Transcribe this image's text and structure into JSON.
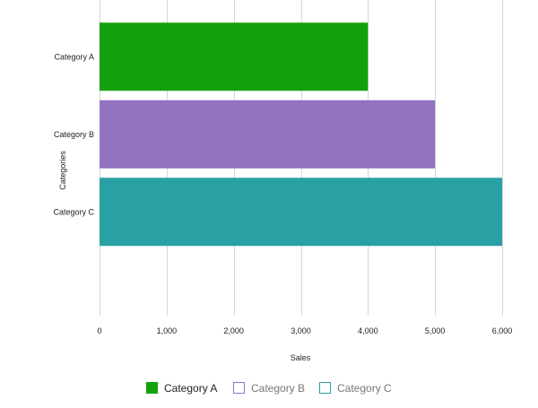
{
  "chart_data": {
    "type": "bar",
    "orientation": "horizontal",
    "categories": [
      "Category A",
      "Category B",
      "Category C"
    ],
    "series": [
      {
        "values": [
          4000,
          5000,
          6000
        ]
      }
    ],
    "colors": [
      "#13a10e",
      "#9373c0",
      "#2aa0a4"
    ],
    "xlabel": "Sales",
    "ylabel": "Categories",
    "xlim": [
      0,
      6000
    ],
    "xticks": [
      "0",
      "1,000",
      "2,000",
      "3,000",
      "4,000",
      "5,000",
      "6,000"
    ],
    "xtick_values": [
      0,
      1000,
      2000,
      3000,
      4000,
      5000,
      6000
    ],
    "grid": "vertical",
    "legend": {
      "placement": "bottom",
      "entries": [
        {
          "label": "Category A",
          "color": "#13a10e",
          "active": true
        },
        {
          "label": "Category B",
          "color": "#9373c0",
          "active": false
        },
        {
          "label": "Category C",
          "color": "#2aa0a4",
          "active": false
        }
      ]
    }
  }
}
